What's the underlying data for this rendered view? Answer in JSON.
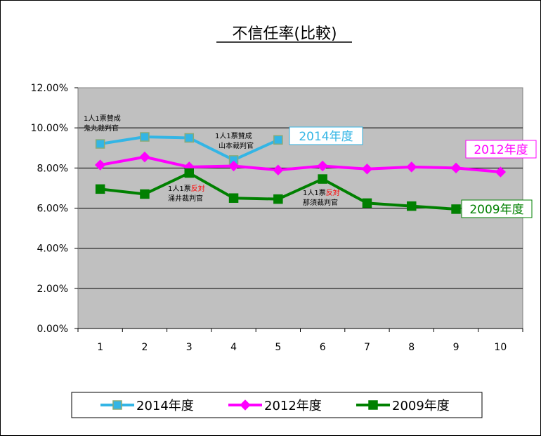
{
  "chart_data": {
    "type": "line",
    "title": "不信任率(比較)",
    "xlabel": "",
    "ylabel": "",
    "categories": [
      "1",
      "2",
      "3",
      "4",
      "5",
      "6",
      "7",
      "8",
      "9",
      "10"
    ],
    "ylim": [
      0,
      12
    ],
    "yticks": [
      "0.00%",
      "2.00%",
      "4.00%",
      "6.00%",
      "8.00%",
      "10.00%",
      "12.00%"
    ],
    "grid": true,
    "legend_position": "bottom",
    "series": [
      {
        "name": "2014年度",
        "color": "#33b5e5",
        "marker": "square",
        "values": [
          9.2,
          9.55,
          9.5,
          8.4,
          9.4,
          null,
          null,
          null,
          null,
          null
        ]
      },
      {
        "name": "2012年度",
        "color": "#ff00ff",
        "marker": "diamond",
        "values": [
          8.15,
          8.55,
          8.05,
          8.1,
          7.9,
          8.1,
          7.95,
          8.05,
          8.0,
          7.8
        ]
      },
      {
        "name": "2009年度",
        "color": "#008000",
        "marker": "square",
        "values": [
          6.95,
          6.7,
          7.75,
          6.5,
          6.45,
          7.45,
          6.25,
          6.1,
          5.95,
          null
        ]
      }
    ],
    "series_labels": [
      {
        "text": "2014年度",
        "color": "#33b5e5"
      },
      {
        "text": "2012年度",
        "color": "#ff00ff"
      },
      {
        "text": "2009年度",
        "color": "#008000"
      }
    ],
    "annotations": [
      {
        "line1": "1人1票賛成",
        "line2": "鬼丸裁判官"
      },
      {
        "line1": "1人1票賛成",
        "line2": "山本裁判官"
      },
      {
        "line1a": "1人1票",
        "line1b": "反対",
        "line2": "涌井裁判官"
      },
      {
        "line1a": "1人1票",
        "line1b": "反対",
        "line2": "那須裁判官"
      }
    ]
  }
}
